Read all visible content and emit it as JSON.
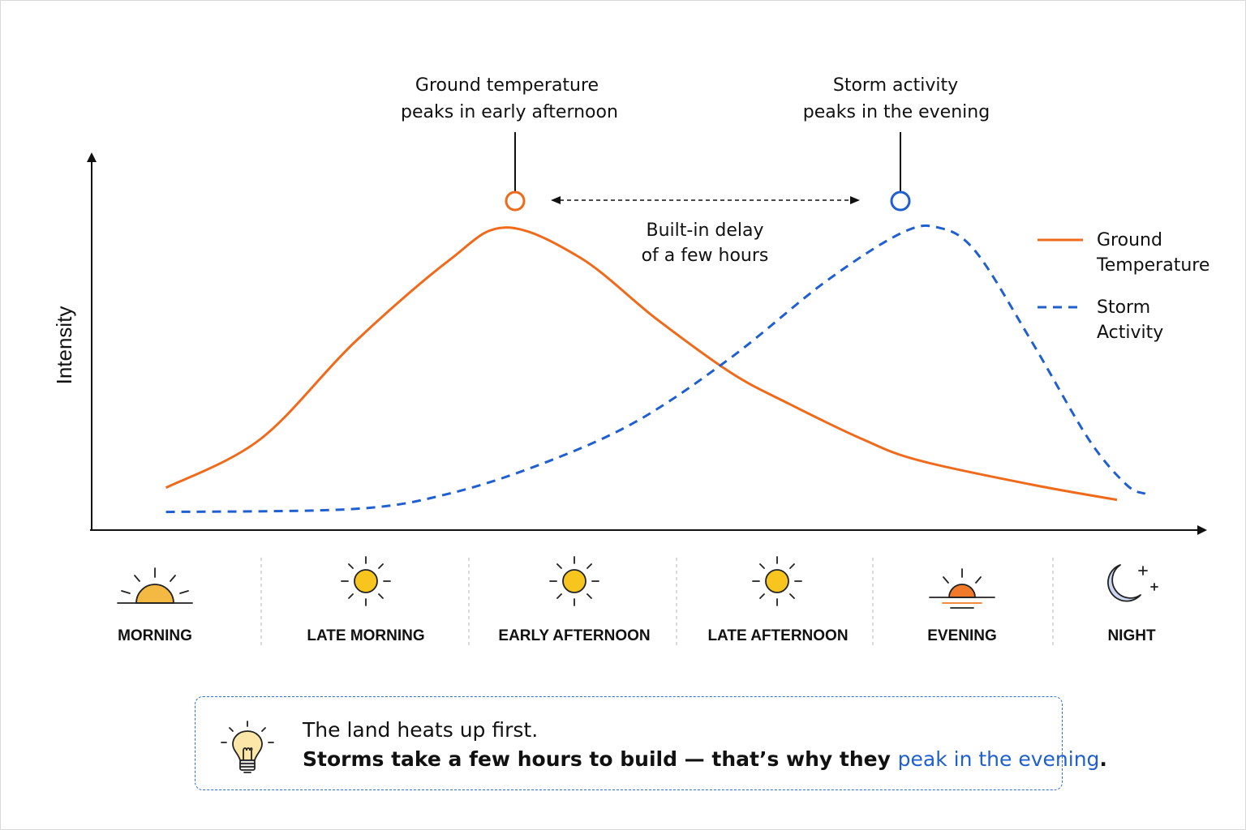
{
  "chart_data": {
    "type": "line",
    "ylabel": "Intensity",
    "categories": [
      "MORNING",
      "LATE MORNING",
      "EARLY AFTERNOON",
      "LATE AFTERNOON",
      "EVENING",
      "NIGHT"
    ],
    "series": [
      {
        "name": "Ground Temperature",
        "style": "solid",
        "color": "#f06a1c",
        "points": [
          [
            0.0,
            0.14
          ],
          [
            0.5,
            0.3
          ],
          [
            1.0,
            0.62
          ],
          [
            1.5,
            0.89
          ],
          [
            1.8,
            1.0
          ],
          [
            2.2,
            0.9
          ],
          [
            2.6,
            0.7
          ],
          [
            3.0,
            0.52
          ],
          [
            3.3,
            0.42
          ],
          [
            3.7,
            0.3
          ],
          [
            4.0,
            0.23
          ],
          [
            4.6,
            0.15
          ],
          [
            5.05,
            0.1
          ]
        ]
      },
      {
        "name": "Storm Activity",
        "style": "dashed",
        "color": "#1f5fd0",
        "points": [
          [
            0.0,
            0.06
          ],
          [
            1.0,
            0.07
          ],
          [
            1.5,
            0.12
          ],
          [
            2.0,
            0.22
          ],
          [
            2.5,
            0.36
          ],
          [
            3.0,
            0.57
          ],
          [
            3.5,
            0.82
          ],
          [
            3.9,
            0.98
          ],
          [
            4.1,
            1.0
          ],
          [
            4.3,
            0.92
          ],
          [
            4.6,
            0.62
          ],
          [
            4.9,
            0.3
          ],
          [
            5.1,
            0.15
          ],
          [
            5.2,
            0.12
          ]
        ]
      }
    ],
    "ylim": [
      0,
      1.2
    ],
    "xlim": [
      -0.3,
      5.3
    ],
    "legend_position": "right",
    "annotations": {
      "temp_peak": [
        "Ground temperature",
        "peaks in early afternoon"
      ],
      "storm_peak": [
        "Storm activity",
        "peaks in the evening"
      ],
      "delay": [
        "Built-in delay",
        "of a few hours"
      ]
    },
    "legend": {
      "temp": [
        "Ground",
        "Temperature"
      ],
      "storm": [
        "Storm",
        "Activity"
      ]
    }
  },
  "time_icons": [
    "sunrise-icon",
    "sun-icon",
    "sun-icon",
    "sun-icon",
    "sunset-icon",
    "moon-icon"
  ],
  "colors": {
    "temperature": "#f06a1c",
    "storm": "#1f5fd0"
  },
  "callout": {
    "icon": "lightbulb-icon",
    "line1": "The land heats up first.",
    "line2_strong": "Storms take a few hours to build — that’s why they ",
    "line2_highlight": "peak in the evening",
    "line2_end": "."
  }
}
